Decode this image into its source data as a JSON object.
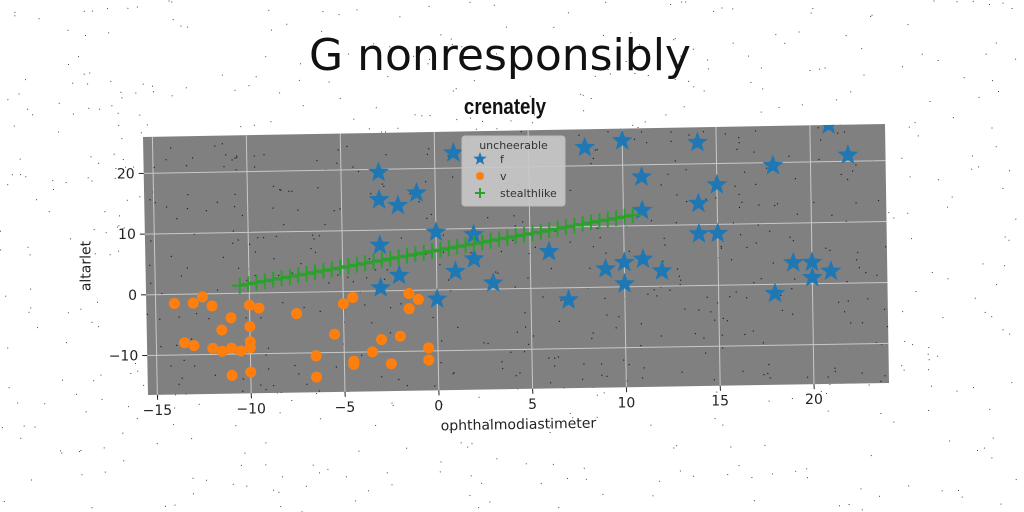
{
  "chart_data": {
    "type": "scatter",
    "title": "G nonresponsibly",
    "subtitle": "crenately",
    "xlabel": "ophthalmodiastimeter",
    "ylabel": "altarlet",
    "xlim": [
      -15.5,
      24
    ],
    "ylim": [
      -16.5,
      26
    ],
    "xticks": [
      -15,
      -10,
      -5,
      0,
      5,
      10,
      15,
      20
    ],
    "yticks": [
      -10,
      0,
      10,
      20
    ],
    "grid": true,
    "legend": {
      "title": "uncheerable",
      "position": "top-center"
    },
    "series": [
      {
        "name": "f",
        "marker": "star",
        "color": "#1f77b4",
        "points": [
          [
            -3,
            19.5
          ],
          [
            -3,
            15
          ],
          [
            -2,
            14
          ],
          [
            -1,
            16
          ],
          [
            1,
            22.5
          ],
          [
            -3,
            7.5
          ],
          [
            -3,
            0.5
          ],
          [
            -2,
            2.5
          ],
          [
            0,
            9.5
          ],
          [
            2,
            9
          ],
          [
            1,
            3
          ],
          [
            2,
            5
          ],
          [
            3,
            1
          ],
          [
            0,
            -1.5
          ],
          [
            6,
            6
          ],
          [
            7,
            -2
          ],
          [
            8,
            23
          ],
          [
            9,
            3
          ],
          [
            10,
            24
          ],
          [
            10,
            4
          ],
          [
            11,
            4.5
          ],
          [
            10,
            0.5
          ],
          [
            11,
            18
          ],
          [
            11,
            12.5
          ],
          [
            12,
            2.5
          ],
          [
            14,
            23.5
          ],
          [
            14,
            13.5
          ],
          [
            14,
            8.5
          ],
          [
            15,
            16.5
          ],
          [
            15,
            8.5
          ],
          [
            18,
            19.5
          ],
          [
            18,
            -1.5
          ],
          [
            19,
            3.5
          ],
          [
            20,
            3.5
          ],
          [
            20,
            1
          ],
          [
            21,
            2
          ],
          [
            21,
            26
          ],
          [
            22,
            21
          ]
        ]
      },
      {
        "name": "v",
        "marker": "circle",
        "color": "#ff7f0e",
        "points": [
          [
            -14,
            -1.5
          ],
          [
            -13,
            -1.5
          ],
          [
            -12.5,
            -0.5
          ],
          [
            -12,
            -2
          ],
          [
            -13.5,
            -8
          ],
          [
            -13,
            -8.5
          ],
          [
            -12,
            -9
          ],
          [
            -11.5,
            -9.5
          ],
          [
            -11,
            -9
          ],
          [
            -11,
            -4
          ],
          [
            -10.5,
            -9.5
          ],
          [
            -10,
            -9
          ],
          [
            -10,
            -8
          ],
          [
            -11,
            -13.5
          ],
          [
            -10,
            -13
          ],
          [
            -10,
            -5.5
          ],
          [
            -10,
            -2
          ],
          [
            -9.5,
            -2.5
          ],
          [
            -7.5,
            -3.5
          ],
          [
            -6.5,
            -10.5
          ],
          [
            -6.5,
            -14
          ],
          [
            -5.5,
            -7
          ],
          [
            -5,
            -2
          ],
          [
            -4.5,
            -11.5
          ],
          [
            -4.5,
            -1
          ],
          [
            -4.5,
            -12
          ],
          [
            -3.5,
            -10
          ],
          [
            -3,
            -8
          ],
          [
            -2.5,
            -12
          ],
          [
            -2,
            -7.5
          ],
          [
            -1.5,
            -3
          ],
          [
            -1.5,
            -0.5
          ],
          [
            -1,
            -1.5
          ],
          [
            -0.5,
            -9.5
          ],
          [
            -0.5,
            -11.5
          ],
          [
            -11.5,
            -6
          ]
        ]
      },
      {
        "name": "stealthlike",
        "marker": "plus",
        "color": "#2ca02c",
        "line": {
          "x_start": -10.5,
          "x_end": 10.5,
          "n": 48,
          "slope": 0.5,
          "intercept": 6.5
        }
      }
    ]
  }
}
